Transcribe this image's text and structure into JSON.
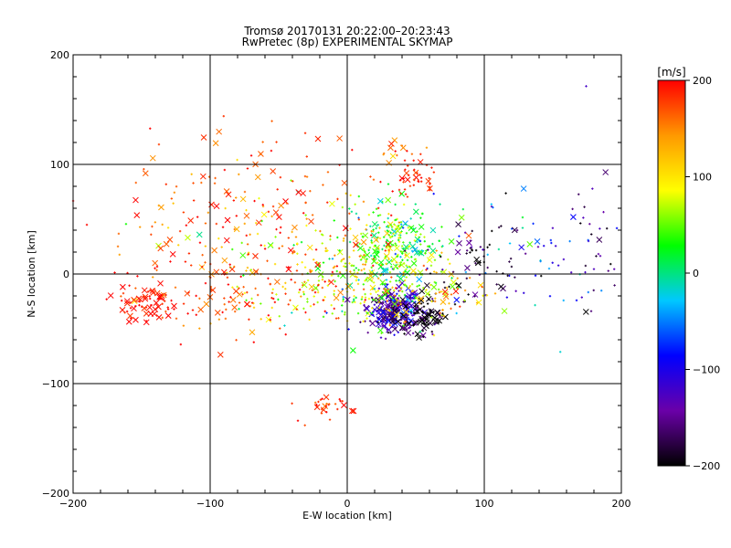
{
  "chart_data": {
    "type": "scatter",
    "title_line1": "Tromsø 20170131 20:22:00–20:23:43",
    "title_line2": "RwPretec (8p) EXPERIMENTAL SKYMAP",
    "xlabel": "E-W location [km]",
    "ylabel": "N-S location [km]",
    "xlim": [
      -200,
      200
    ],
    "ylim": [
      -200,
      200
    ],
    "x_ticks": [
      -200,
      -100,
      0,
      100,
      200
    ],
    "y_ticks": [
      -200,
      -100,
      0,
      100,
      200
    ],
    "x_tick_labels": [
      "−200",
      "−100",
      "0",
      "100",
      "200"
    ],
    "y_tick_labels": [
      "−200",
      "−100",
      "0",
      "100",
      "200"
    ],
    "grid_lines": [
      -100,
      0,
      100
    ],
    "grid": true,
    "colorbar": {
      "label": "[m/s]",
      "range": [
        -200,
        200
      ],
      "ticks": [
        200,
        100,
        0,
        -100,
        -200
      ],
      "tick_labels": [
        "200",
        "100",
        "0",
        "−100",
        "−200"
      ],
      "colormap": [
        "#000000",
        "#6a00a8",
        "#0000ff",
        "#00c8ff",
        "#00ff00",
        "#ffff00",
        "#ff9900",
        "#ff0000"
      ]
    },
    "markers": [
      "x (large)",
      "+ (small)"
    ],
    "clusters": [
      {
        "cx": 35,
        "cy": -35,
        "sx": 10,
        "sy": 10,
        "v": -140,
        "sv": 35,
        "n": 260,
        "x_frac": 0.45
      },
      {
        "cx": 55,
        "cy": -38,
        "sx": 8,
        "sy": 8,
        "v": -200,
        "sv": 15,
        "n": 70,
        "x_frac": 0.5
      },
      {
        "cx": 35,
        "cy": 25,
        "sx": 20,
        "sy": 18,
        "v": 40,
        "sv": 40,
        "n": 260,
        "x_frac": 0.15
      },
      {
        "cx": 20,
        "cy": -15,
        "sx": 30,
        "sy": 15,
        "v": 70,
        "sv": 50,
        "n": 180,
        "x_frac": 0.15
      },
      {
        "cx": -20,
        "cy": 10,
        "sx": 45,
        "sy": 30,
        "v": 100,
        "sv": 60,
        "n": 220,
        "x_frac": 0.15
      },
      {
        "cx": -145,
        "cy": -25,
        "sx": 12,
        "sy": 10,
        "v": 195,
        "sv": 10,
        "n": 60,
        "x_frac": 0.5
      },
      {
        "cx": -90,
        "cy": -20,
        "sx": 30,
        "sy": 25,
        "v": 180,
        "sv": 25,
        "n": 90,
        "x_frac": 0.25
      },
      {
        "cx": 50,
        "cy": 85,
        "sx": 8,
        "sy": 10,
        "v": 190,
        "sv": 12,
        "n": 40,
        "x_frac": 0.2
      },
      {
        "cx": 35,
        "cy": 112,
        "sx": 6,
        "sy": 4,
        "v": 160,
        "sv": 30,
        "n": 14,
        "x_frac": 0.4
      },
      {
        "cx": -15,
        "cy": -122,
        "sx": 10,
        "sy": 6,
        "v": 190,
        "sv": 15,
        "n": 30,
        "x_frac": 0.2
      },
      {
        "cx": -60,
        "cy": 70,
        "sx": 45,
        "sy": 35,
        "v": 175,
        "sv": 30,
        "n": 100,
        "x_frac": 0.3
      },
      {
        "cx": -120,
        "cy": 40,
        "sx": 40,
        "sy": 40,
        "v": 170,
        "sv": 30,
        "n": 70,
        "x_frac": 0.25
      },
      {
        "cx": 130,
        "cy": 20,
        "sx": 40,
        "sy": 30,
        "v": -90,
        "sv": 60,
        "n": 70,
        "x_frac": 0.15
      },
      {
        "cx": 180,
        "cy": 20,
        "sx": 10,
        "sy": 40,
        "v": -160,
        "sv": 30,
        "n": 25,
        "x_frac": 0.05
      },
      {
        "cx": 90,
        "cy": 10,
        "sx": 20,
        "sy": 20,
        "v": -180,
        "sv": 30,
        "n": 60,
        "x_frac": 0.2
      },
      {
        "cx": 80,
        "cy": -20,
        "sx": 15,
        "sy": 10,
        "v": 140,
        "sv": 40,
        "n": 30,
        "x_frac": 0.2
      }
    ]
  }
}
